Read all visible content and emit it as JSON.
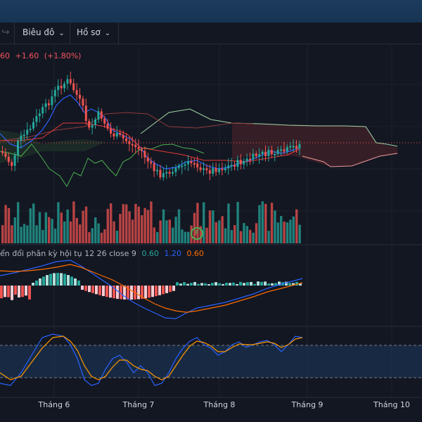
{
  "toolbar": {
    "undo_icon": "redo-arrow-icon",
    "chart_type_label": "Biêu đô",
    "profile_label": "Hồ sơ"
  },
  "price": {
    "partial_value": "60",
    "change": "+1.60",
    "change_pct": "(+1.80%)"
  },
  "macd": {
    "title": "ển đổi phân kỳ hội tụ 12 26 close 9",
    "value_hist": "0.60",
    "value_macd": "1.20",
    "value_signal": "0.60"
  },
  "volume_marker": {
    "label": "F"
  },
  "x_axis": {
    "labels": [
      "Tháng 6",
      "Tháng 7",
      "Tháng 8",
      "Tháng 9",
      "Tháng 10"
    ]
  },
  "colors": {
    "up": "#26a69a",
    "down": "#ef5350",
    "macd": "#2962ff",
    "signal": "#ff6d00",
    "cloud_fill": "#3b1f28"
  }
}
